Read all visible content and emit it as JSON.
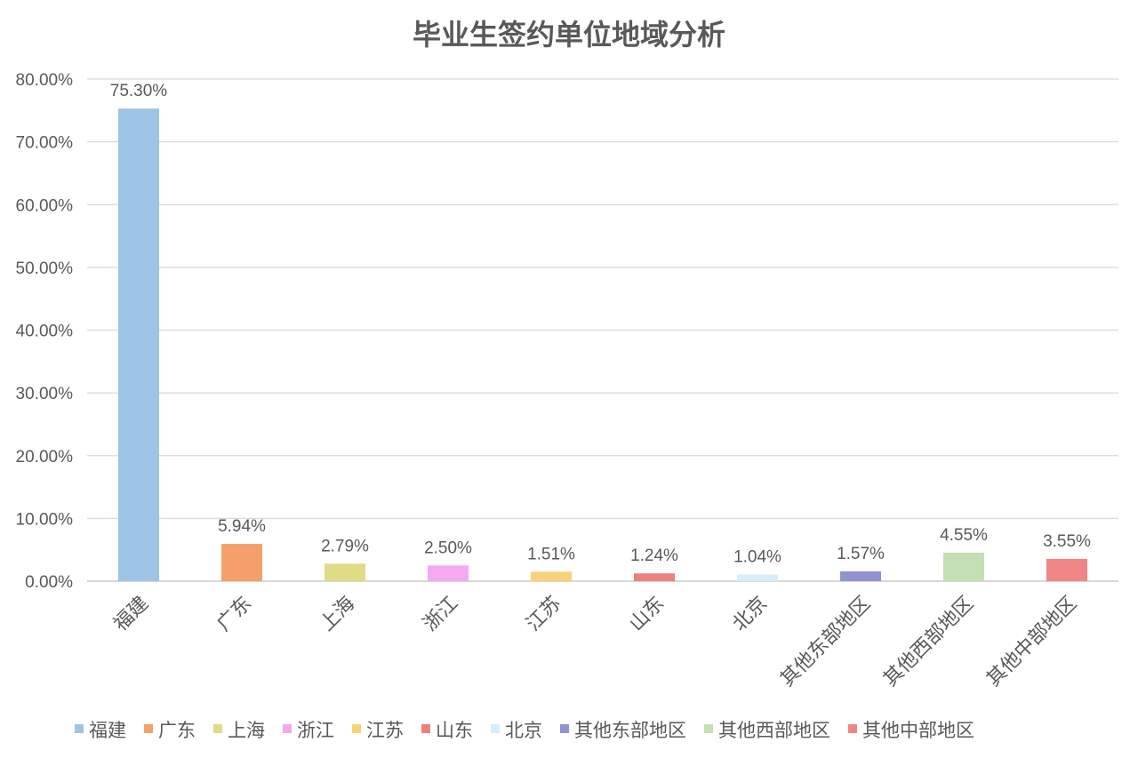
{
  "chart_data": {
    "type": "bar",
    "title": "毕业生签约单位地域分析",
    "categories": [
      "福建",
      "广东",
      "上海",
      "浙江",
      "江苏",
      "山东",
      "北京",
      "其他东部地区",
      "其他西部地区",
      "其他中部地区"
    ],
    "values": [
      75.3,
      5.94,
      2.79,
      2.5,
      1.51,
      1.24,
      1.04,
      1.57,
      4.55,
      3.55
    ],
    "value_labels": [
      "75.30%",
      "5.94%",
      "2.79%",
      "2.50%",
      "1.51%",
      "1.24%",
      "1.04%",
      "1.57%",
      "4.55%",
      "3.55%"
    ],
    "colors": [
      "#9DC3E6",
      "#F4A06A",
      "#E0DC86",
      "#F4A8F0",
      "#F7D278",
      "#EC8080",
      "#D6EEFA",
      "#9192D2",
      "#C2E0B4",
      "#F08585"
    ],
    "ylim": [
      0,
      80
    ],
    "yticks": [
      0,
      10,
      20,
      30,
      40,
      50,
      60,
      70,
      80
    ],
    "ytick_labels": [
      "0.00%",
      "10.00%",
      "20.00%",
      "30.00%",
      "40.00%",
      "50.00%",
      "60.00%",
      "70.00%",
      "80.00%"
    ],
    "grid": true,
    "legend_position": "bottom",
    "xlabel": "",
    "ylabel": ""
  }
}
